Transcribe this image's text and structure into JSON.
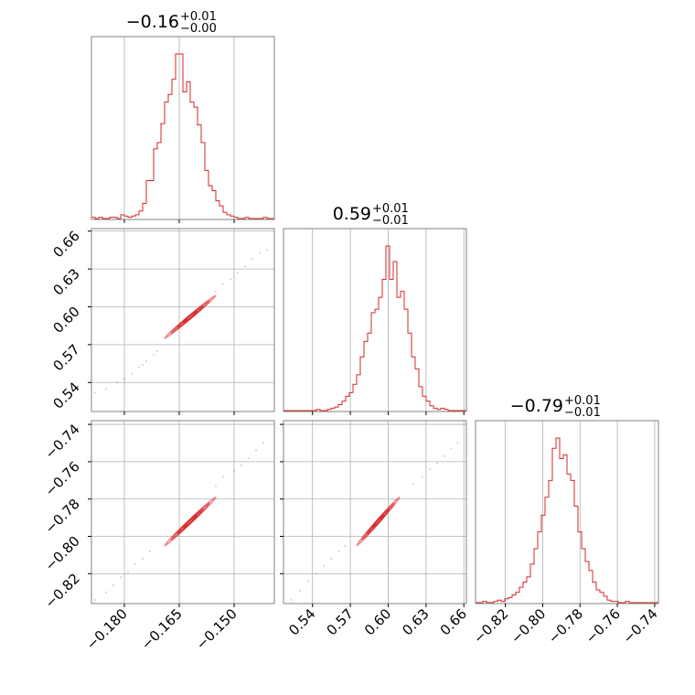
{
  "chart_data": {
    "type": "scatter",
    "subtype": "corner-plot",
    "colors": {
      "accent": "#d62728",
      "grid": "#b0b0b0",
      "frame": "#808080"
    },
    "parameters": [
      {
        "title_median": "−0.16",
        "title_plus": "+0.01",
        "title_minus": "−0.00",
        "median": -0.162,
        "sigma": 0.0035,
        "range": [
          -0.189,
          -0.139
        ]
      },
      {
        "title_median": "0.59",
        "title_plus": "+0.01",
        "title_minus": "−0.01",
        "median": 0.592,
        "sigma": 0.0085,
        "range": [
          0.517,
          0.662
        ]
      },
      {
        "title_median": "−0.79",
        "title_plus": "+0.01",
        "title_minus": "−0.01",
        "median": -0.792,
        "sigma": 0.0065,
        "range": [
          -0.836,
          -0.738
        ]
      }
    ],
    "ticks": [
      {
        "values": [
          -0.18,
          -0.165,
          -0.15
        ],
        "labels": [
          "−0.180",
          "−0.165",
          "−0.150"
        ]
      },
      {
        "values": [
          0.54,
          0.57,
          0.6,
          0.63,
          0.66
        ],
        "labels": [
          "0.54",
          "0.57",
          "0.60",
          "0.63",
          "0.66"
        ]
      },
      {
        "values": [
          -0.82,
          -0.8,
          -0.78,
          -0.76,
          -0.74
        ],
        "labels": [
          "−0.82",
          "−0.80",
          "−0.78",
          "−0.76",
          "−0.74"
        ]
      }
    ],
    "histograms": [
      {
        "param": 0,
        "bin_edges": [
          -0.189,
          -0.139
        ],
        "counts": [
          1,
          0,
          1,
          0,
          0,
          1,
          1,
          0,
          3,
          2,
          1,
          2,
          3,
          6,
          12,
          30,
          30,
          55,
          60,
          75,
          92,
          98,
          110,
          130,
          130,
          100,
          108,
          92,
          88,
          74,
          60,
          38,
          26,
          22,
          14,
          10,
          5,
          3,
          2,
          1,
          0,
          0,
          1,
          0,
          0,
          0,
          0,
          1,
          0,
          0
        ]
      },
      {
        "param": 1,
        "bin_edges": [
          0.517,
          0.662
        ],
        "counts": [
          0,
          0,
          0,
          0,
          0,
          0,
          0,
          0,
          0,
          1,
          0,
          0,
          1,
          2,
          3,
          5,
          8,
          12,
          15,
          22,
          30,
          45,
          58,
          65,
          82,
          85,
          95,
          110,
          138,
          110,
          125,
          95,
          100,
          85,
          65,
          45,
          35,
          20,
          12,
          8,
          4,
          2,
          1,
          2,
          1,
          0,
          0,
          0,
          0,
          0
        ]
      },
      {
        "param": 2,
        "bin_edges": [
          -0.836,
          -0.738
        ],
        "counts": [
          0,
          0,
          1,
          0,
          0,
          1,
          2,
          1,
          3,
          4,
          6,
          8,
          12,
          16,
          20,
          30,
          42,
          55,
          68,
          82,
          95,
          120,
          128,
          112,
          115,
          100,
          95,
          75,
          55,
          42,
          32,
          25,
          16,
          10,
          8,
          5,
          2,
          1,
          1,
          0,
          0,
          1,
          0,
          0,
          0,
          0,
          0,
          0,
          0,
          0
        ]
      }
    ],
    "pairs": [
      {
        "x_param": 0,
        "y_param": 1,
        "rho": 0.995
      },
      {
        "x_param": 0,
        "y_param": 2,
        "rho": 0.995
      },
      {
        "x_param": 1,
        "y_param": 2,
        "rho": 0.995
      }
    ],
    "contour_levels_sigma": [
      0.5,
      1.0,
      1.5,
      2.0
    ],
    "tail_points": [
      {
        "pair": 0,
        "points": [
          [
            -0.188,
            0.532
          ],
          [
            -0.185,
            0.535
          ],
          [
            -0.182,
            0.54
          ],
          [
            -0.18,
            0.543
          ],
          [
            -0.178,
            0.547
          ],
          [
            -0.176,
            0.552
          ],
          [
            -0.175,
            0.554
          ],
          [
            -0.174,
            0.557
          ],
          [
            -0.172,
            0.562
          ],
          [
            -0.171,
            0.565
          ],
          [
            -0.155,
            0.612
          ],
          [
            -0.153,
            0.618
          ],
          [
            -0.151,
            0.622
          ],
          [
            -0.149,
            0.627
          ],
          [
            -0.147,
            0.632
          ],
          [
            -0.145,
            0.638
          ],
          [
            -0.143,
            0.643
          ],
          [
            -0.141,
            0.645
          ]
        ]
      },
      {
        "pair": 1,
        "points": [
          [
            -0.188,
            -0.834
          ],
          [
            -0.185,
            -0.83
          ],
          [
            -0.183,
            -0.826
          ],
          [
            -0.181,
            -0.822
          ],
          [
            -0.179,
            -0.819
          ],
          [
            -0.177,
            -0.815
          ],
          [
            -0.175,
            -0.812
          ],
          [
            -0.173,
            -0.808
          ],
          [
            -0.155,
            -0.773
          ],
          [
            -0.153,
            -0.768
          ],
          [
            -0.15,
            -0.765
          ],
          [
            -0.148,
            -0.762
          ],
          [
            -0.146,
            -0.758
          ],
          [
            -0.144,
            -0.754
          ],
          [
            -0.142,
            -0.75
          ]
        ]
      },
      {
        "pair": 2,
        "points": [
          [
            0.523,
            -0.834
          ],
          [
            0.53,
            -0.829
          ],
          [
            0.537,
            -0.824
          ],
          [
            0.543,
            -0.82
          ],
          [
            0.549,
            -0.816
          ],
          [
            0.555,
            -0.812
          ],
          [
            0.561,
            -0.808
          ],
          [
            0.566,
            -0.805
          ],
          [
            0.62,
            -0.772
          ],
          [
            0.627,
            -0.768
          ],
          [
            0.633,
            -0.764
          ],
          [
            0.639,
            -0.761
          ],
          [
            0.645,
            -0.757
          ],
          [
            0.65,
            -0.753
          ],
          [
            0.655,
            -0.75
          ]
        ]
      }
    ]
  }
}
